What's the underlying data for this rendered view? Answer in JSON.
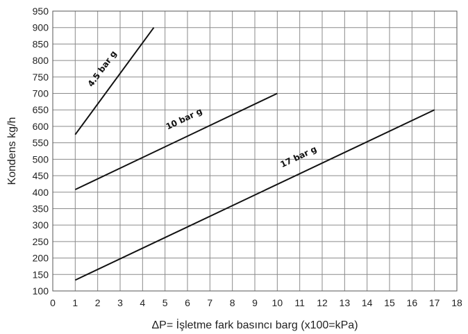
{
  "chart_data": {
    "type": "line",
    "xlabel": "ΔP= İşletme fark basıncı barg (x100=kPa)",
    "ylabel": "Kondens kg/h",
    "xlim": [
      0,
      18
    ],
    "ylim": [
      100,
      950
    ],
    "xticks": [
      0,
      1,
      2,
      3,
      4,
      5,
      6,
      7,
      8,
      9,
      10,
      11,
      12,
      13,
      14,
      15,
      16,
      17,
      18
    ],
    "yticks": [
      100,
      150,
      200,
      250,
      300,
      350,
      400,
      450,
      500,
      550,
      600,
      650,
      700,
      750,
      800,
      850,
      900,
      950
    ],
    "grid": true,
    "legend": "none",
    "series": [
      {
        "name": "4.5 bar g",
        "x": [
          1,
          4.5
        ],
        "y": [
          575,
          900
        ],
        "label_at": [
          2.3,
          770
        ]
      },
      {
        "name": "10 bar g",
        "x": [
          1,
          10
        ],
        "y": [
          408,
          700
        ],
        "label_at": [
          5.9,
          615
        ]
      },
      {
        "name": "17 bar g",
        "x": [
          1,
          17
        ],
        "y": [
          133,
          650
        ],
        "label_at": [
          11,
          500
        ]
      }
    ]
  }
}
